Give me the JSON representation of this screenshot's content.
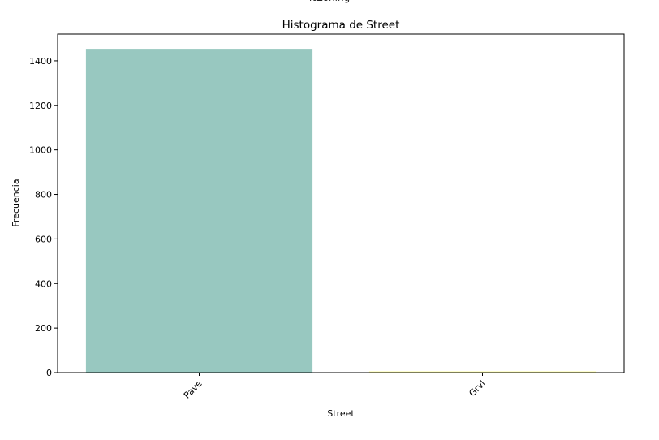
{
  "figure_header": "ftZoning",
  "chart_data": {
    "type": "bar",
    "title": "Histograma de Street",
    "xlabel": "Street",
    "ylabel": "Frecuencia",
    "categories": [
      "Pave",
      "Grvl"
    ],
    "values": [
      1454,
      6
    ],
    "ylim": [
      0,
      1520
    ],
    "yticks": [
      0,
      200,
      400,
      600,
      800,
      1000,
      1200,
      1400
    ],
    "colors": [
      "#98c8c0",
      "#fdfdb4"
    ],
    "grid": false,
    "legend": "none"
  }
}
